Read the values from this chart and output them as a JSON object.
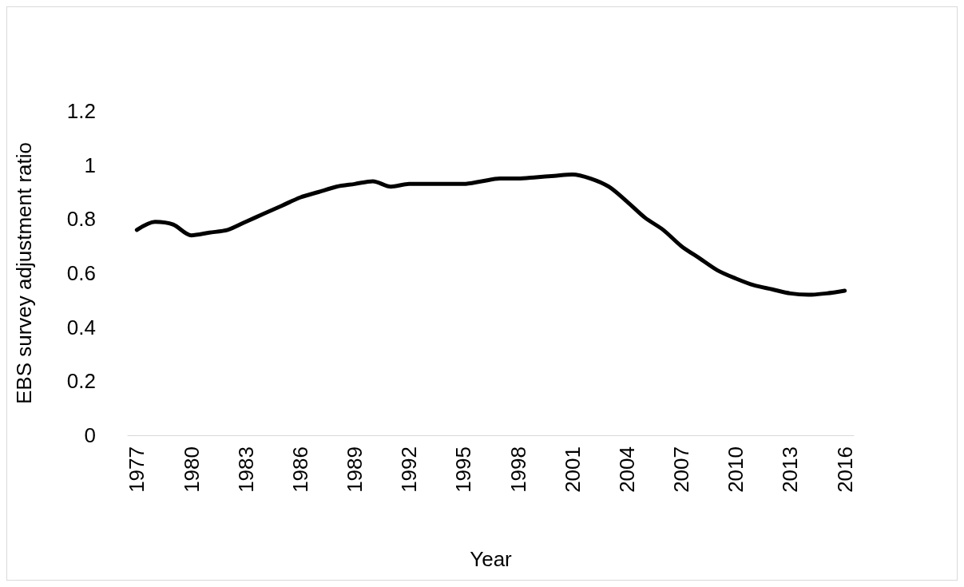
{
  "chart_data": {
    "type": "line",
    "xlabel": "Year",
    "ylabel": "EBS survey adjustment ratio",
    "categories": [
      "1977",
      null,
      null,
      "1980",
      null,
      null,
      "1983",
      null,
      null,
      "1986",
      null,
      null,
      "1989",
      null,
      null,
      "1992",
      null,
      null,
      "1995",
      null,
      null,
      "1998",
      null,
      null,
      "2001",
      null,
      null,
      "2004",
      null,
      null,
      "2007",
      null,
      null,
      "2010",
      null,
      null,
      "2013",
      null,
      null,
      "2016"
    ],
    "series": [
      {
        "color": "#000000",
        "values": [
          0.76,
          0.79,
          0.78,
          0.74,
          0.75,
          0.76,
          0.79,
          0.82,
          0.85,
          0.88,
          0.9,
          0.92,
          0.93,
          0.94,
          0.92,
          0.93,
          0.93,
          0.93,
          0.93,
          0.94,
          0.95,
          0.95,
          0.955,
          0.96,
          0.965,
          0.95,
          0.92,
          0.865,
          0.805,
          0.76,
          0.7,
          0.655,
          0.61,
          0.58,
          0.555,
          0.54,
          0.525,
          0.52,
          0.525,
          0.535
        ]
      }
    ],
    "ylim": [
      0,
      1.2
    ],
    "yticks": [
      0,
      0.2,
      0.4,
      0.6,
      0.8,
      1,
      1.2
    ],
    "grid": false,
    "marker": "none",
    "line_style": "solid"
  }
}
